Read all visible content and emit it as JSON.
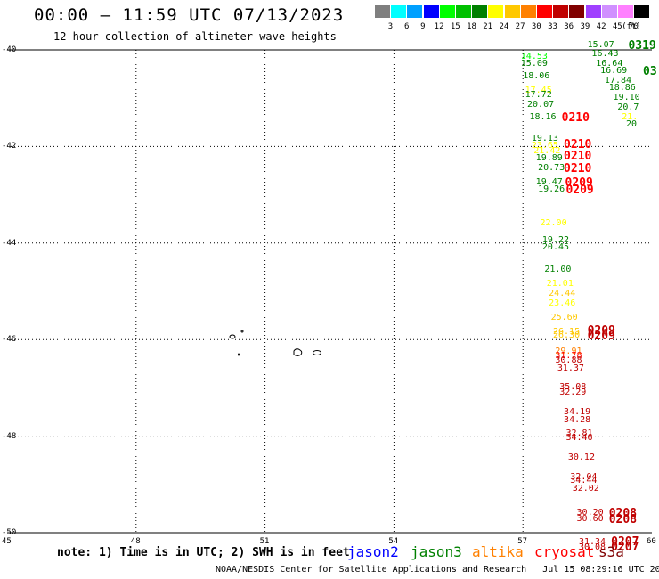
{
  "header": {
    "title": "00:00 – 11:59 UTC 07/13/2023",
    "subtitle": "12 hour collection of altimeter wave heights"
  },
  "legend": {
    "bins": [
      {
        "label": "3",
        "color": "#7f7f7f"
      },
      {
        "label": "6",
        "color": "#00ffff"
      },
      {
        "label": "9",
        "color": "#00a0ff"
      },
      {
        "label": "12",
        "color": "#0000ff"
      },
      {
        "label": "15",
        "color": "#00ff00"
      },
      {
        "label": "18",
        "color": "#00c000"
      },
      {
        "label": "21",
        "color": "#008000"
      },
      {
        "label": "24",
        "color": "#ffff00"
      },
      {
        "label": "27",
        "color": "#ffc800"
      },
      {
        "label": "30",
        "color": "#ff8000"
      },
      {
        "label": "33",
        "color": "#ff0000"
      },
      {
        "label": "36",
        "color": "#c00000"
      },
      {
        "label": "39",
        "color": "#800000"
      },
      {
        "label": "42",
        "color": "#a040ff"
      },
      {
        "label": "45",
        "color": "#d090ff"
      },
      {
        "label": "70",
        "color": "#ff80ff"
      },
      {
        "label": "",
        "color": "#000000"
      }
    ],
    "unit": "(ft)"
  },
  "axes": {
    "lat_labels": [
      "-40",
      "-42",
      "-44",
      "-46",
      "-48",
      "-50"
    ],
    "lon_labels": [
      "45",
      "48",
      "51",
      "54",
      "57",
      "60"
    ]
  },
  "observations": [
    {
      "v": "15.07",
      "c": "#008000",
      "lon": 58.5,
      "lat": -39.9
    },
    {
      "v": "16.43",
      "c": "#008000",
      "lon": 58.6,
      "lat": -40.1
    },
    {
      "v": "16.64",
      "c": "#008000",
      "lon": 58.7,
      "lat": -40.3
    },
    {
      "v": "16.69",
      "c": "#008000",
      "lon": 58.8,
      "lat": -40.45
    },
    {
      "v": "17.84",
      "c": "#008000",
      "lon": 58.9,
      "lat": -40.65
    },
    {
      "v": "18.86",
      "c": "#008000",
      "lon": 59.0,
      "lat": -40.8
    },
    {
      "v": "19.10",
      "c": "#008000",
      "lon": 59.1,
      "lat": -41.0
    },
    {
      "v": "20.7",
      "c": "#008000",
      "lon": 59.2,
      "lat": -41.2
    },
    {
      "v": "21.",
      "c": "#ffff00",
      "lon": 59.3,
      "lat": -41.4
    },
    {
      "v": "20",
      "c": "#008000",
      "lon": 59.4,
      "lat": -41.55
    },
    {
      "v": "14.53",
      "c": "#00ff00",
      "lon": 56.95,
      "lat": -40.15
    },
    {
      "v": "15.09",
      "c": "#008000",
      "lon": 56.95,
      "lat": -40.3
    },
    {
      "v": "18.06",
      "c": "#008000",
      "lon": 57.0,
      "lat": -40.55
    },
    {
      "v": "17.45",
      "c": "#ffff00",
      "lon": 57.05,
      "lat": -40.85
    },
    {
      "v": "17.72",
      "c": "#008000",
      "lon": 57.05,
      "lat": -40.95
    },
    {
      "v": "20.07",
      "c": "#008000",
      "lon": 57.1,
      "lat": -41.15
    },
    {
      "v": "18.16",
      "c": "#008000",
      "lon": 57.15,
      "lat": -41.4
    },
    {
      "v": "19.13",
      "c": "#008000",
      "lon": 57.2,
      "lat": -41.85
    },
    {
      "v": "23.65",
      "c": "#ffff00",
      "lon": 57.2,
      "lat": -42.0
    },
    {
      "v": "21.42",
      "c": "#ffff00",
      "lon": 57.25,
      "lat": -42.1
    },
    {
      "v": "19.89",
      "c": "#008000",
      "lon": 57.3,
      "lat": -42.25
    },
    {
      "v": "20.73",
      "c": "#008000",
      "lon": 57.35,
      "lat": -42.45
    },
    {
      "v": "19.47",
      "c": "#008000",
      "lon": 57.3,
      "lat": -42.75
    },
    {
      "v": "19.26",
      "c": "#008000",
      "lon": 57.35,
      "lat": -42.9
    },
    {
      "v": "22.00",
      "c": "#ffff00",
      "lon": 57.4,
      "lat": -43.6
    },
    {
      "v": "19.22",
      "c": "#008000",
      "lon": 57.45,
      "lat": -43.95
    },
    {
      "v": "20.45",
      "c": "#008000",
      "lon": 57.45,
      "lat": -44.1
    },
    {
      "v": "21.00",
      "c": "#008000",
      "lon": 57.5,
      "lat": -44.55
    },
    {
      "v": "21.01",
      "c": "#ffff00",
      "lon": 57.55,
      "lat": -44.85
    },
    {
      "v": "24.44",
      "c": "#ffc800",
      "lon": 57.6,
      "lat": -45.05
    },
    {
      "v": "23.46",
      "c": "#ffff00",
      "lon": 57.6,
      "lat": -45.25
    },
    {
      "v": "25.60",
      "c": "#ffc800",
      "lon": 57.65,
      "lat": -45.55
    },
    {
      "v": "26.15",
      "c": "#ffc800",
      "lon": 57.7,
      "lat": -45.85
    },
    {
      "v": "26.30",
      "c": "#ffc800",
      "lon": 57.7,
      "lat": -45.93
    },
    {
      "v": "29.91",
      "c": "#ff8000",
      "lon": 57.75,
      "lat": -46.25
    },
    {
      "v": "31.78",
      "c": "#ff0000",
      "lon": 57.75,
      "lat": -46.35
    },
    {
      "v": "30.88",
      "c": "#c00000",
      "lon": 57.75,
      "lat": -46.43
    },
    {
      "v": "31.37",
      "c": "#c00000",
      "lon": 57.8,
      "lat": -46.6
    },
    {
      "v": "35.08",
      "c": "#c00000",
      "lon": 57.85,
      "lat": -47.0
    },
    {
      "v": "32.29",
      "c": "#c00000",
      "lon": 57.85,
      "lat": -47.1
    },
    {
      "v": "34.19",
      "c": "#c00000",
      "lon": 57.95,
      "lat": -47.5
    },
    {
      "v": "34.28",
      "c": "#c00000",
      "lon": 57.95,
      "lat": -47.68
    },
    {
      "v": "32.81",
      "c": "#c00000",
      "lon": 58.0,
      "lat": -47.95
    },
    {
      "v": "34.46",
      "c": "#c00000",
      "lon": 58.0,
      "lat": -48.05
    },
    {
      "v": "30.12",
      "c": "#c00000",
      "lon": 58.05,
      "lat": -48.45
    },
    {
      "v": "32.04",
      "c": "#c00000",
      "lon": 58.1,
      "lat": -48.85
    },
    {
      "v": "34.44",
      "c": "#c00000",
      "lon": 58.1,
      "lat": -48.93
    },
    {
      "v": "32.02",
      "c": "#c00000",
      "lon": 58.15,
      "lat": -49.1
    },
    {
      "v": "30.20",
      "c": "#c00000",
      "lon": 58.25,
      "lat": -49.6
    },
    {
      "v": "30.60",
      "c": "#c00000",
      "lon": 58.25,
      "lat": -49.72
    },
    {
      "v": "31.34",
      "c": "#c00000",
      "lon": 58.3,
      "lat": -50.2
    },
    {
      "v": "30.08",
      "c": "#c00000",
      "lon": 58.3,
      "lat": -50.32
    }
  ],
  "time_labels": [
    {
      "t": "0319",
      "c": "#008000",
      "lon": 59.45,
      "lat": -39.9
    },
    {
      "t": "03",
      "c": "#008000",
      "lon": 59.85,
      "lat": -40.45
    },
    {
      "t": "0210",
      "c": "#ff0000",
      "lon": 57.9,
      "lat": -41.4
    },
    {
      "t": "0210",
      "c": "#ff0000",
      "lon": 57.95,
      "lat": -41.95
    },
    {
      "t": "0210",
      "c": "#ff0000",
      "lon": 57.95,
      "lat": -42.2
    },
    {
      "t": "0210",
      "c": "#ff0000",
      "lon": 57.95,
      "lat": -42.45
    },
    {
      "t": "0209",
      "c": "#ff0000",
      "lon": 57.98,
      "lat": -42.75
    },
    {
      "t": "0209",
      "c": "#ff0000",
      "lon": 58.0,
      "lat": -42.9
    },
    {
      "t": "0209",
      "c": "#c00000",
      "lon": 58.5,
      "lat": -45.82
    },
    {
      "t": "0209",
      "c": "#c00000",
      "lon": 58.5,
      "lat": -45.92
    },
    {
      "t": "0208",
      "c": "#c00000",
      "lon": 59.0,
      "lat": -49.6
    },
    {
      "t": "0208",
      "c": "#c00000",
      "lon": 59.0,
      "lat": -49.72
    },
    {
      "t": "0207",
      "c": "#c00000",
      "lon": 59.05,
      "lat": -50.18
    },
    {
      "t": "0207",
      "c": "#c00000",
      "lon": 59.05,
      "lat": -50.3
    }
  ],
  "note": "note: 1) Time is in UTC; 2) SWH is in feet",
  "satellites": [
    {
      "name": "jason2",
      "color": "#0000ff"
    },
    {
      "name": "jason3",
      "color": "#008000"
    },
    {
      "name": "altika",
      "color": "#ff8000"
    },
    {
      "name": "cryosat",
      "color": "#ff0000"
    },
    {
      "name": "s3a",
      "color": "#800000"
    }
  ],
  "footer": "NOAA/NESDIS Center for Satellite Applications and Research   Jul 15 08:29:16 UTC 2023"
}
